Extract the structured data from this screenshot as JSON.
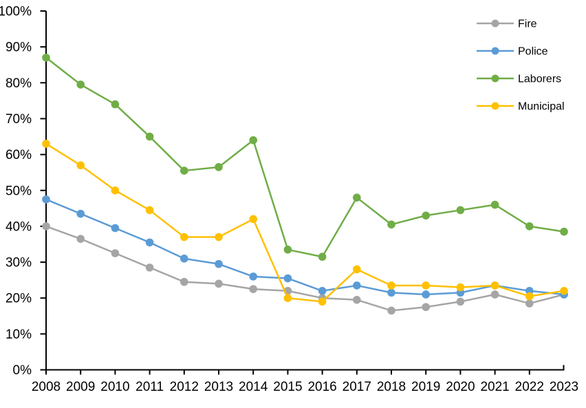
{
  "chart_data": {
    "type": "line",
    "title": "",
    "xlabel": "",
    "ylabel": "",
    "categories": [
      "2008",
      "2009",
      "2010",
      "2011",
      "2012",
      "2013",
      "2014",
      "2015",
      "2016",
      "2017",
      "2018",
      "2019",
      "2020",
      "2021",
      "2022",
      "2023"
    ],
    "series": [
      {
        "name": "Fire",
        "color": "#A5A5A5",
        "values": [
          40,
          36.5,
          32.5,
          28.5,
          24.5,
          24,
          22.5,
          22,
          20,
          19.5,
          16.5,
          17.5,
          19,
          21,
          18.5,
          21
        ]
      },
      {
        "name": "Police",
        "color": "#5B9BD5",
        "values": [
          47.5,
          43.5,
          39.5,
          35.5,
          31,
          29.5,
          26,
          25.5,
          22,
          23.5,
          21.5,
          21,
          21.5,
          23.5,
          22,
          21
        ]
      },
      {
        "name": "Laborers",
        "color": "#70AD47",
        "values": [
          87,
          79.5,
          74,
          65,
          55.5,
          56.5,
          64,
          33.5,
          31.5,
          48,
          40.5,
          43,
          44.5,
          46,
          40,
          38.5
        ]
      },
      {
        "name": "Municipal",
        "color": "#FFC000",
        "values": [
          63,
          57,
          50,
          44.5,
          37,
          37,
          42,
          20,
          19,
          28,
          23.5,
          23.5,
          23,
          23.5,
          20.5,
          22
        ]
      }
    ],
    "y_tick_labels": [
      "0%",
      "10%",
      "20%",
      "30%",
      "40%",
      "50%",
      "60%",
      "70%",
      "80%",
      "90%",
      "100%"
    ],
    "ylim": [
      0,
      100
    ],
    "grid": false,
    "legend_position": "top-right",
    "axis_color": "#000000",
    "marker": "circle"
  }
}
